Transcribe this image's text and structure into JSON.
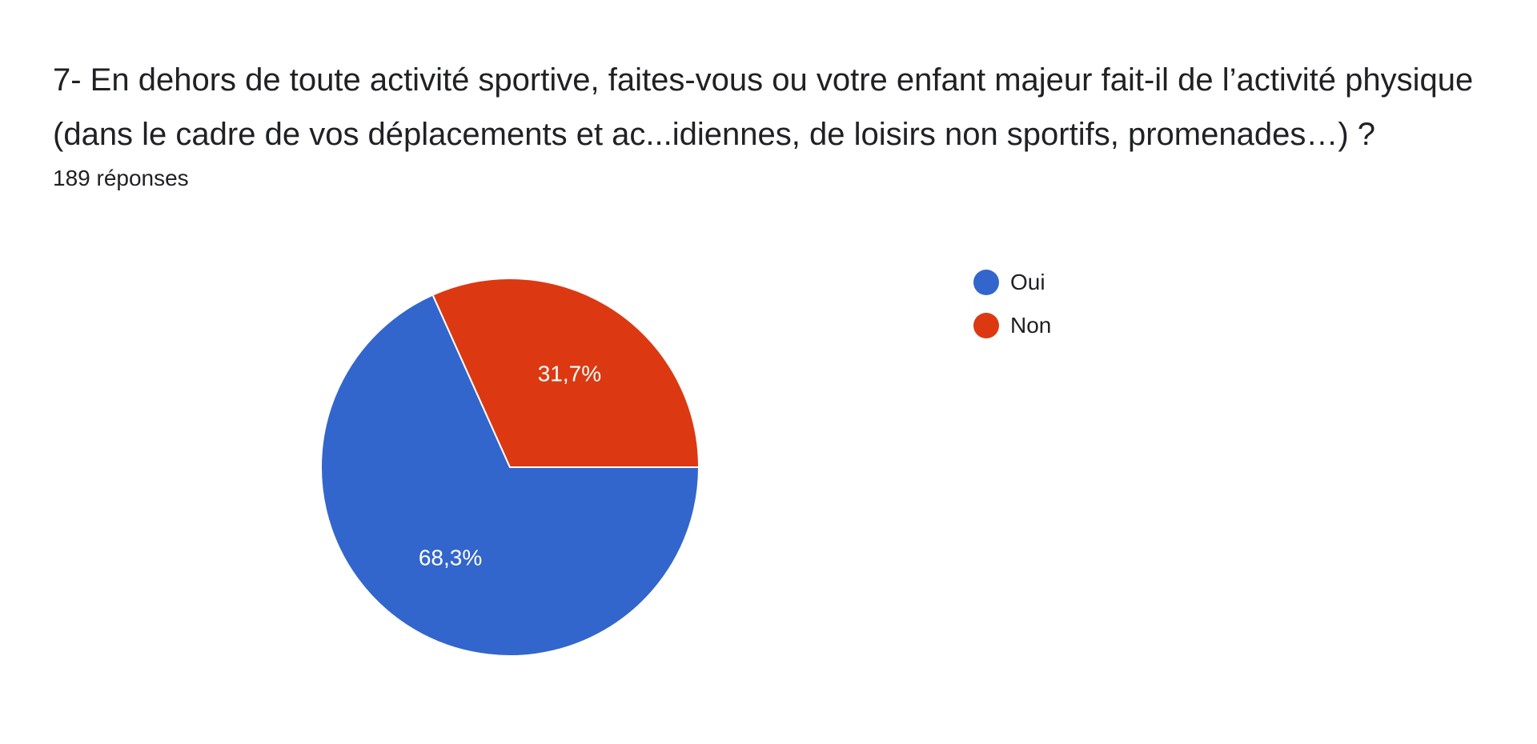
{
  "question": {
    "title": "7- En dehors de toute activité sportive, faites-vous ou votre enfant majeur fait-il de l’activité physique (dans le cadre de vos déplacements et ac...idiennes, de loisirs non sportifs, promenades…) ?",
    "response_count": "189 réponses"
  },
  "chart_data": {
    "type": "pie",
    "title": "7- En dehors de toute activité sportive, faites-vous ou votre enfant majeur fait-il de l’activité physique (dans le cadre de vos déplacements et ac...idiennes, de loisirs non sportifs, promenades…) ?",
    "categories": [
      "Oui",
      "Non"
    ],
    "values": [
      68.3,
      31.7
    ],
    "value_labels": [
      "68,3%",
      "31,7%"
    ],
    "colors": [
      "#3366cc",
      "#dc3912"
    ],
    "legend_position": "right"
  },
  "legend": {
    "items": [
      {
        "label": "Oui",
        "color": "#3366cc"
      },
      {
        "label": "Non",
        "color": "#dc3912"
      }
    ]
  }
}
